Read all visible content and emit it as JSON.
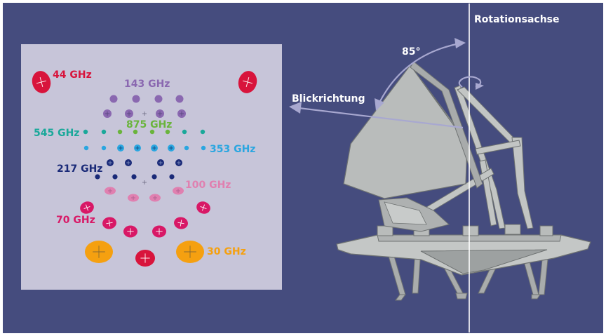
{
  "colors": {
    "background": "#454c7e",
    "panel": "#c7c5d9",
    "label_30ghz": "#f5a010",
    "label_44ghz": "#d8143c",
    "label_70ghz": "#d81866",
    "label_100ghz": "#e080b0",
    "label_143ghz": "#8a68b0",
    "label_217ghz": "#1a2a78",
    "label_353ghz": "#2aa6e0",
    "label_545ghz": "#1aa89a",
    "label_875ghz": "#6ab43c",
    "arrow": "#a8a8d0",
    "white": "#ffffff"
  },
  "focal_plane": {
    "labels": {
      "ghz44": "44 GHz",
      "ghz143": "143 GHz",
      "ghz545": "545 GHz",
      "ghz875": "875 GHz",
      "ghz353": "353 GHz",
      "ghz217": "217 GHz",
      "ghz100": "100 GHz",
      "ghz70": "70 GHz",
      "ghz30": "30 GHz"
    }
  },
  "telescope": {
    "rotation_axis_label": "Rotationsachse",
    "angle_label": "85°",
    "view_direction_label": "Blickrichtung"
  }
}
